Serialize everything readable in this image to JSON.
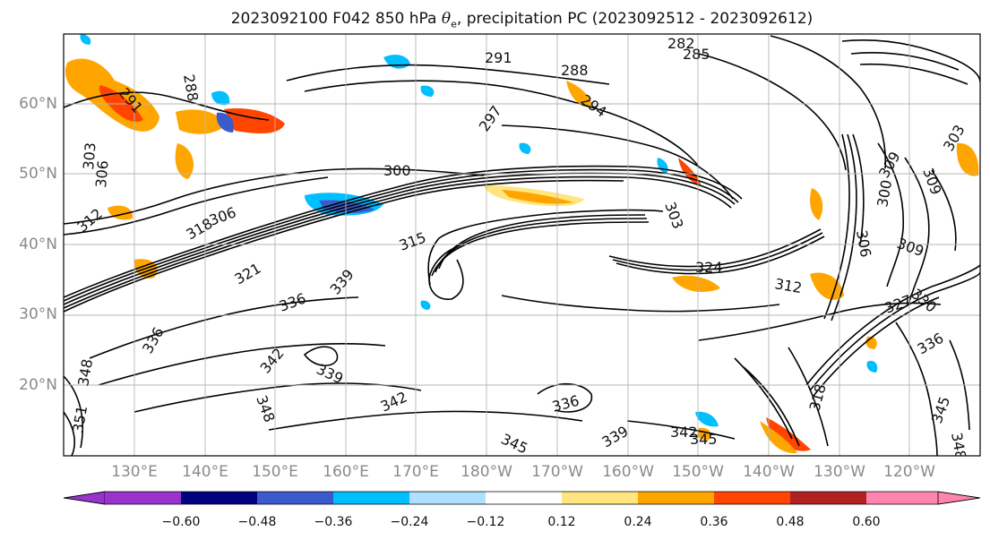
{
  "title": {
    "prefix": "2023092100 F042 850 hPa ",
    "symbol": "θ",
    "subscript": "e",
    "suffix": ", precipitation PC (2023092512 - 2023092612)"
  },
  "map": {
    "lat_labels": [
      "60°N",
      "50°N",
      "40°N",
      "30°N",
      "20°N"
    ],
    "lon_labels": [
      "130°E",
      "140°E",
      "150°E",
      "160°E",
      "170°E",
      "180°W",
      "170°W",
      "160°W",
      "150°W",
      "140°W",
      "130°W",
      "120°W"
    ],
    "contour_labels": [
      "282",
      "285",
      "291",
      "288",
      "297",
      "291",
      "288",
      "294",
      "303",
      "306",
      "300",
      "303",
      "309",
      "309",
      "306",
      "309",
      "312",
      "324",
      "318",
      "312",
      "321",
      "336",
      "339",
      "342",
      "342",
      "336",
      "336",
      "339",
      "348",
      "348",
      "351",
      "345",
      "342",
      "345",
      "339",
      "348",
      "345",
      "336",
      "327",
      "330",
      "318",
      "300",
      "303",
      "315",
      "306"
    ],
    "precip_colors": {
      "strong_negative": "#9933cc",
      "negative_0_60": "#000080",
      "negative_0_48": "#3b5bcc",
      "negative_0_36": "#00bfff",
      "negative_0_24": "#b0e0ff",
      "neutral": "#ffffff",
      "positive_0_12": "#ffe680",
      "positive_0_24": "#ffa500",
      "positive_0_36": "#ff4500",
      "positive_0_48": "#b22222",
      "positive_0_60": "#ff85b0"
    }
  },
  "colorbar": {
    "tick_labels": [
      "−0.60",
      "−0.48",
      "−0.36",
      "−0.24",
      "−0.12",
      "0.12",
      "0.24",
      "0.36",
      "0.48",
      "0.60"
    ],
    "colors": [
      "#9933cc",
      "#000080",
      "#3b5bcc",
      "#00bfff",
      "#b0e0ff",
      "#ffffff",
      "#ffe680",
      "#ffa500",
      "#ff4500",
      "#b22222",
      "#ff85b0"
    ]
  }
}
